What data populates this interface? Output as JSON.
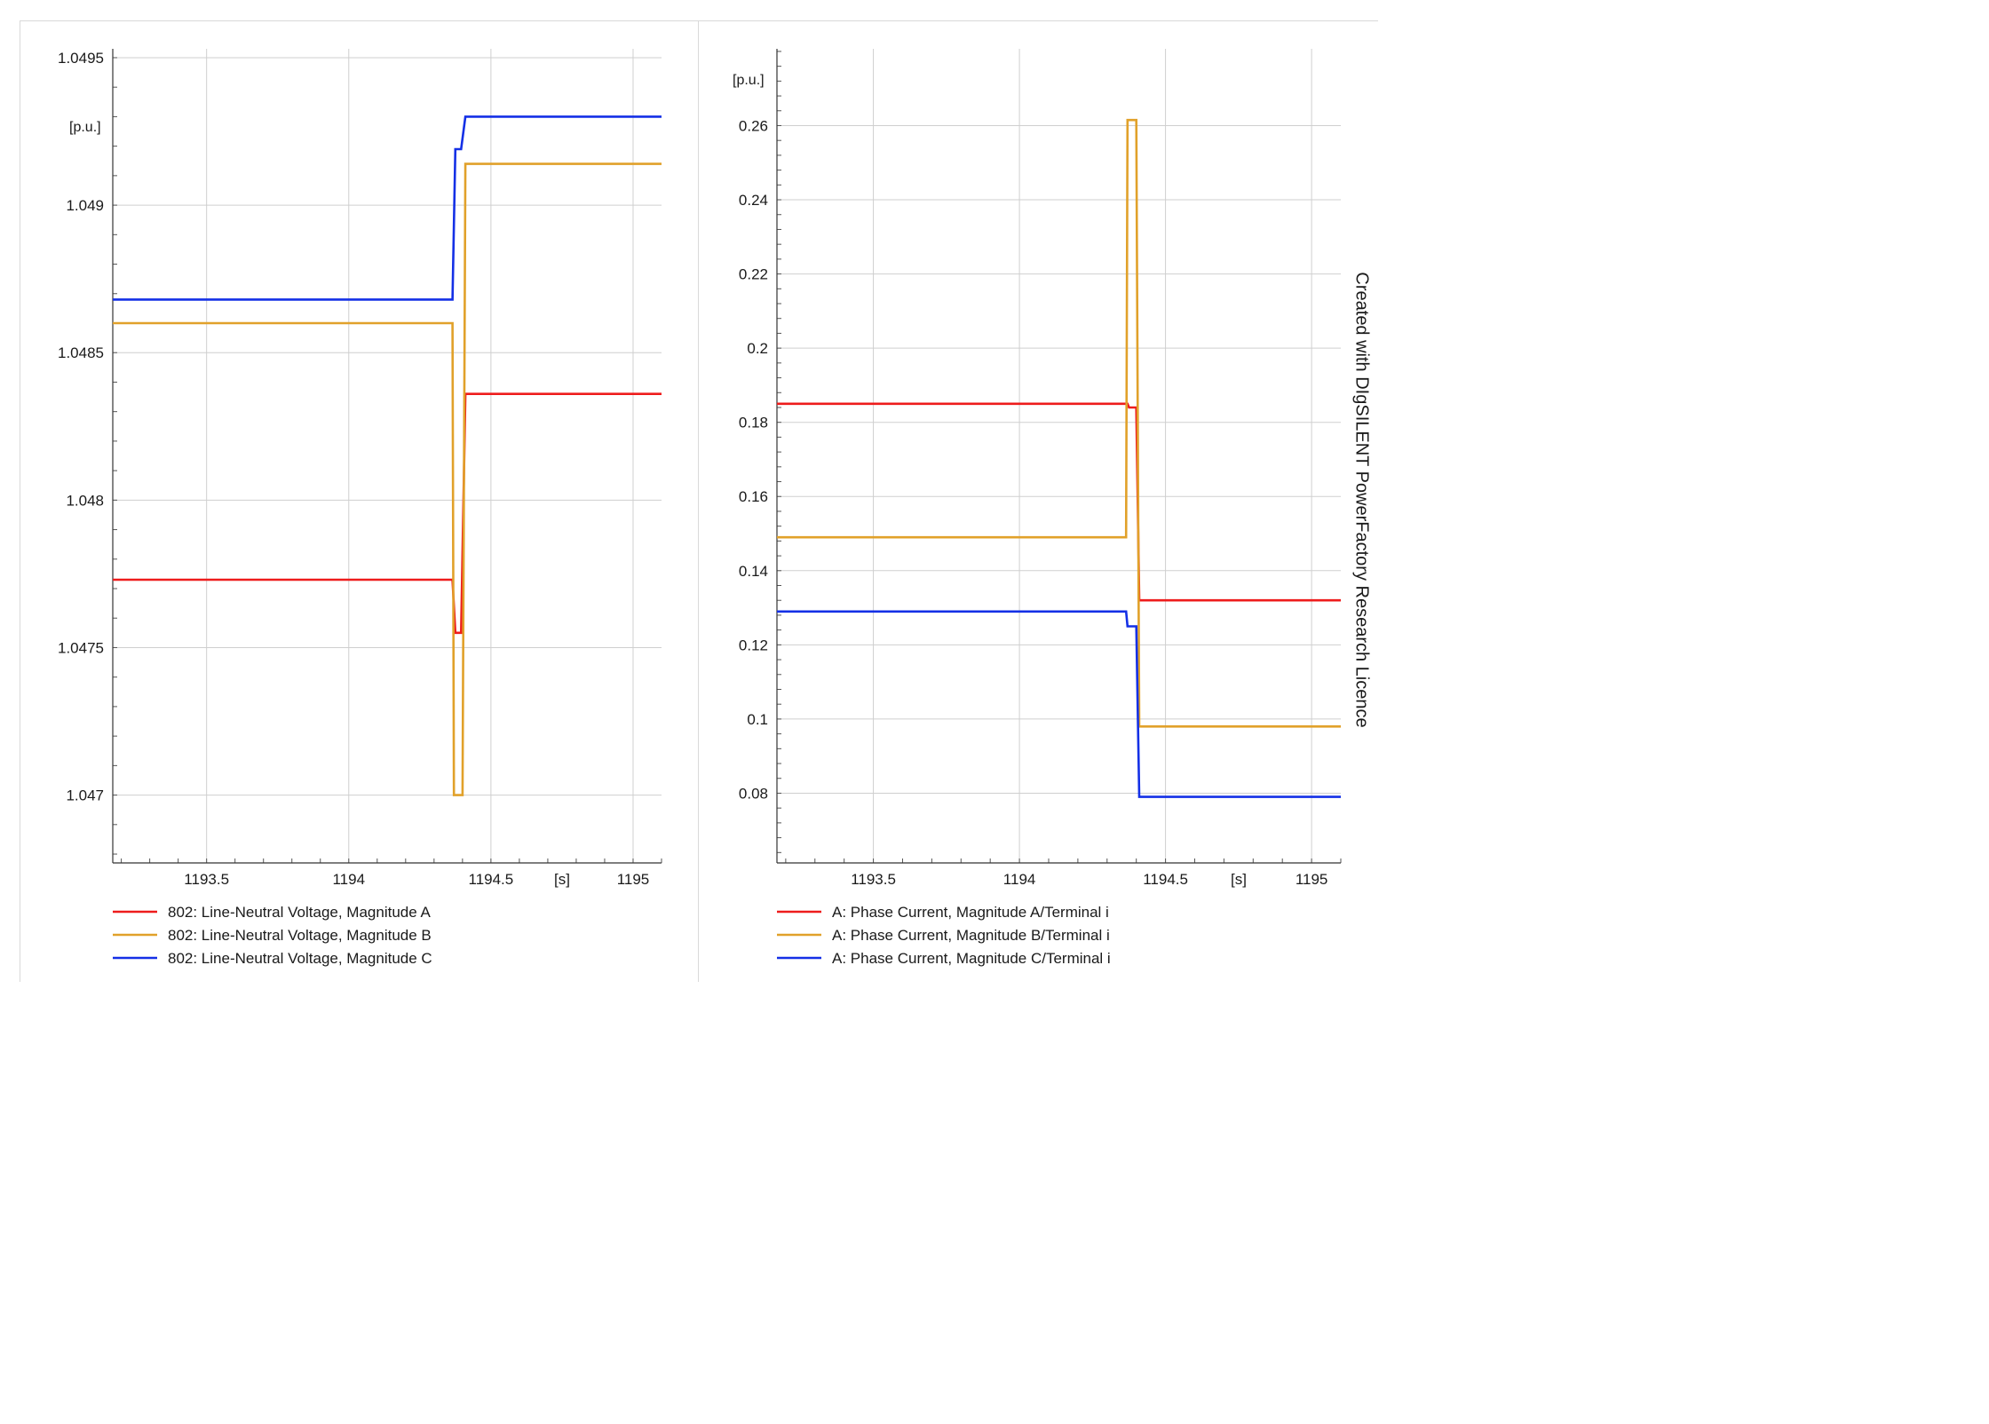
{
  "watermark": "Created with DIgSILENT PowerFactory Research Licence",
  "chart_data": [
    {
      "type": "line",
      "x_unit": "[s]",
      "y_unit": "[p.u.]",
      "xlim": [
        1193.17,
        1195.1
      ],
      "ylim": [
        1.04677,
        1.04953
      ],
      "x_ticks": [
        1193.5,
        1194,
        1194.5,
        1195
      ],
      "x_tick_labels": [
        "1193.5",
        "1194",
        "1194.5",
        "1195"
      ],
      "y_ticks": [
        1.047,
        1.0475,
        1.048,
        1.0485,
        1.049,
        1.0495
      ],
      "y_tick_labels": [
        "1.047",
        "1.0475",
        "1.048",
        "1.0485",
        "1.049",
        "1.0495"
      ],
      "grid": true,
      "legend_position": "bottom",
      "series": [
        {
          "name": "802: Line-Neutral Voltage, Magnitude A",
          "color": "#ee1c1c",
          "points": [
            [
              1193.17,
              1.04773
            ],
            [
              1194.365,
              1.04773
            ],
            [
              1194.375,
              1.04755
            ],
            [
              1194.395,
              1.04755
            ],
            [
              1194.41,
              1.04836
            ],
            [
              1195.1,
              1.04836
            ]
          ]
        },
        {
          "name": "802: Line-Neutral Voltage, Magnitude B",
          "color": "#e1a12a",
          "points": [
            [
              1193.17,
              1.0486
            ],
            [
              1194.365,
              1.0486
            ],
            [
              1194.37,
              1.047
            ],
            [
              1194.4,
              1.047
            ],
            [
              1194.41,
              1.04914
            ],
            [
              1195.1,
              1.04914
            ]
          ]
        },
        {
          "name": "802: Line-Neutral Voltage, Magnitude C",
          "color": "#1430e6",
          "points": [
            [
              1193.17,
              1.04868
            ],
            [
              1194.365,
              1.04868
            ],
            [
              1194.375,
              1.04919
            ],
            [
              1194.395,
              1.04919
            ],
            [
              1194.41,
              1.0493
            ],
            [
              1195.1,
              1.0493
            ]
          ]
        }
      ]
    },
    {
      "type": "line",
      "x_unit": "[s]",
      "y_unit": "[p.u.]",
      "xlim": [
        1193.17,
        1195.1
      ],
      "ylim": [
        0.0612,
        0.2807
      ],
      "x_ticks": [
        1193.5,
        1194,
        1194.5,
        1195
      ],
      "x_tick_labels": [
        "1193.5",
        "1194",
        "1194.5",
        "1195"
      ],
      "y_ticks": [
        0.08,
        0.1,
        0.12,
        0.14,
        0.16,
        0.18,
        0.2,
        0.22,
        0.24,
        0.26
      ],
      "y_tick_labels": [
        "0.08",
        "0.1",
        "0.12",
        "0.14",
        "0.16",
        "0.18",
        "0.2",
        "0.22",
        "0.24",
        "0.26"
      ],
      "grid": true,
      "legend_position": "bottom",
      "series": [
        {
          "name": "A: Phase Current, Magnitude A/Terminal i",
          "color": "#ee1c1c",
          "points": [
            [
              1193.17,
              0.185
            ],
            [
              1194.37,
              0.185
            ],
            [
              1194.375,
              0.184
            ],
            [
              1194.4,
              0.184
            ],
            [
              1194.41,
              0.132
            ],
            [
              1195.1,
              0.132
            ]
          ]
        },
        {
          "name": "A: Phase Current, Magnitude B/Terminal i",
          "color": "#e1a12a",
          "points": [
            [
              1193.17,
              0.149
            ],
            [
              1194.365,
              0.149
            ],
            [
              1194.37,
              0.2615
            ],
            [
              1194.4,
              0.2615
            ],
            [
              1194.41,
              0.098
            ],
            [
              1195.1,
              0.098
            ]
          ]
        },
        {
          "name": "A: Phase Current, Magnitude C/Terminal i",
          "color": "#1430e6",
          "points": [
            [
              1193.17,
              0.129
            ],
            [
              1194.365,
              0.129
            ],
            [
              1194.37,
              0.125
            ],
            [
              1194.4,
              0.125
            ],
            [
              1194.41,
              0.079
            ],
            [
              1195.1,
              0.079
            ]
          ]
        }
      ]
    }
  ]
}
